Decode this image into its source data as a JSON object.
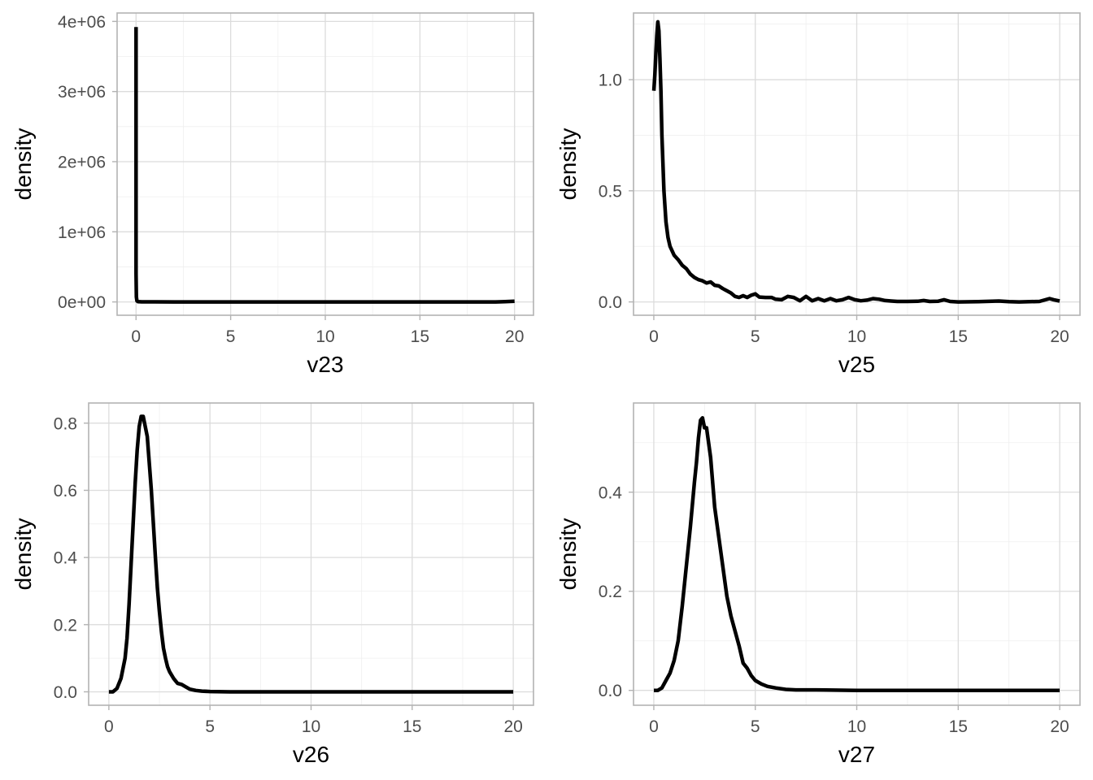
{
  "chart_data": [
    {
      "type": "line",
      "xlabel": "v23",
      "ylabel": "density",
      "xlim": [
        -1,
        21
      ],
      "ylim": [
        -190000,
        4120000
      ],
      "x_ticks": [
        0,
        5,
        10,
        15,
        20
      ],
      "x_tick_labels": [
        "0",
        "5",
        "10",
        "15",
        "20"
      ],
      "y_ticks": [
        0,
        1000000,
        2000000,
        3000000,
        4000000
      ],
      "y_tick_labels": [
        "0e+00",
        "1e+06",
        "2e+06",
        "3e+06",
        "4e+06"
      ],
      "grid": true,
      "series": [
        {
          "x": [
            0,
            0,
            0.02,
            0.05,
            0.1,
            0.3,
            1,
            2,
            5,
            10,
            15,
            19,
            19.5,
            20
          ],
          "y": [
            3920000,
            400000,
            70000,
            15000,
            5000,
            1500,
            800,
            0,
            0,
            0,
            0,
            0,
            5000,
            10000
          ]
        }
      ]
    },
    {
      "type": "line",
      "xlabel": "v25",
      "ylabel": "density",
      "xlim": [
        -1,
        21
      ],
      "ylim": [
        -0.06,
        1.3
      ],
      "x_ticks": [
        0,
        5,
        10,
        15,
        20
      ],
      "x_tick_labels": [
        "0",
        "5",
        "10",
        "15",
        "20"
      ],
      "y_ticks": [
        0,
        0.5,
        1.0
      ],
      "y_tick_labels": [
        "0.0",
        "0.5",
        "1.0"
      ],
      "grid": true,
      "series": [
        {
          "x": [
            0,
            0.05,
            0.1,
            0.15,
            0.2,
            0.25,
            0.3,
            0.35,
            0.4,
            0.5,
            0.6,
            0.7,
            0.8,
            1.0,
            1.2,
            1.4,
            1.6,
            1.8,
            2.0,
            2.2,
            2.4,
            2.6,
            2.8,
            3.0,
            3.2,
            3.4,
            3.6,
            3.8,
            4.0,
            4.2,
            4.4,
            4.6,
            4.8,
            5.0,
            5.2,
            5.5,
            5.8,
            6.0,
            6.3,
            6.6,
            6.9,
            7.2,
            7.5,
            7.8,
            8.1,
            8.4,
            8.7,
            9.0,
            9.3,
            9.6,
            9.9,
            10.2,
            10.5,
            10.8,
            11.1,
            11.4,
            11.7,
            12.0,
            12.5,
            13.0,
            13.3,
            13.6,
            14.0,
            14.3,
            14.6,
            15.0,
            16.0,
            17.0,
            17.5,
            18.0,
            19.0,
            19.5,
            19.7,
            20.0
          ],
          "y": [
            0.95,
            1.02,
            1.12,
            1.2,
            1.26,
            1.22,
            1.1,
            0.95,
            0.75,
            0.5,
            0.36,
            0.29,
            0.25,
            0.21,
            0.19,
            0.165,
            0.15,
            0.125,
            0.11,
            0.1,
            0.095,
            0.085,
            0.09,
            0.075,
            0.072,
            0.06,
            0.05,
            0.04,
            0.025,
            0.02,
            0.028,
            0.02,
            0.03,
            0.036,
            0.022,
            0.02,
            0.02,
            0.012,
            0.01,
            0.025,
            0.02,
            0.005,
            0.025,
            0.005,
            0.015,
            0.005,
            0.015,
            0.005,
            0.01,
            0.02,
            0.01,
            0.005,
            0.008,
            0.015,
            0.012,
            0.006,
            0.004,
            0.002,
            0.002,
            0.003,
            0.006,
            0.002,
            0.003,
            0.01,
            0.002,
            0.0,
            0.001,
            0.004,
            0.001,
            0.0,
            0.002,
            0.015,
            0.01,
            0.004
          ]
        }
      ]
    },
    {
      "type": "line",
      "xlabel": "v26",
      "ylabel": "density",
      "xlim": [
        -1,
        21
      ],
      "ylim": [
        -0.04,
        0.86
      ],
      "x_ticks": [
        0,
        5,
        10,
        15,
        20
      ],
      "x_tick_labels": [
        "0",
        "5",
        "10",
        "15",
        "20"
      ],
      "y_ticks": [
        0,
        0.2,
        0.4,
        0.6,
        0.8
      ],
      "y_tick_labels": [
        "0.0",
        "0.2",
        "0.4",
        "0.6",
        "0.8"
      ],
      "grid": true,
      "series": [
        {
          "x": [
            0,
            0.2,
            0.4,
            0.6,
            0.8,
            0.9,
            1.0,
            1.1,
            1.2,
            1.3,
            1.4,
            1.5,
            1.6,
            1.7,
            1.8,
            1.9,
            2.0,
            2.1,
            2.2,
            2.3,
            2.4,
            2.5,
            2.6,
            2.7,
            2.8,
            2.9,
            3.0,
            3.2,
            3.4,
            3.6,
            3.8,
            4.0,
            4.3,
            4.6,
            5.0,
            6.0,
            8.0,
            10.0,
            15.0,
            20.0
          ],
          "y": [
            0.0,
            0.0,
            0.01,
            0.04,
            0.1,
            0.16,
            0.26,
            0.38,
            0.5,
            0.62,
            0.72,
            0.79,
            0.82,
            0.82,
            0.79,
            0.76,
            0.68,
            0.6,
            0.5,
            0.4,
            0.31,
            0.24,
            0.18,
            0.13,
            0.1,
            0.075,
            0.06,
            0.04,
            0.025,
            0.022,
            0.015,
            0.008,
            0.004,
            0.002,
            0.001,
            0.0,
            0.0,
            0.0,
            0.0,
            0.0
          ]
        }
      ]
    },
    {
      "type": "line",
      "xlabel": "v27",
      "ylabel": "density",
      "xlim": [
        -1,
        21
      ],
      "ylim": [
        -0.03,
        0.58
      ],
      "x_ticks": [
        0,
        5,
        10,
        15,
        20
      ],
      "x_tick_labels": [
        "0",
        "5",
        "10",
        "15",
        "20"
      ],
      "y_ticks": [
        0,
        0.2,
        0.4
      ],
      "y_tick_labels": [
        "0.0",
        "0.2",
        "0.4"
      ],
      "grid": true,
      "series": [
        {
          "x": [
            0,
            0.2,
            0.4,
            0.6,
            0.8,
            1.0,
            1.2,
            1.4,
            1.6,
            1.8,
            2.0,
            2.1,
            2.2,
            2.3,
            2.4,
            2.5,
            2.6,
            2.7,
            2.8,
            2.9,
            3.0,
            3.2,
            3.4,
            3.6,
            3.8,
            4.0,
            4.2,
            4.4,
            4.6,
            4.8,
            5.0,
            5.3,
            5.6,
            6.0,
            6.5,
            7.0,
            8.0,
            10.0,
            15.0,
            20.0
          ],
          "y": [
            0.0,
            0.0,
            0.005,
            0.02,
            0.035,
            0.06,
            0.1,
            0.17,
            0.25,
            0.33,
            0.42,
            0.46,
            0.51,
            0.545,
            0.55,
            0.53,
            0.53,
            0.5,
            0.47,
            0.42,
            0.37,
            0.31,
            0.25,
            0.19,
            0.15,
            0.12,
            0.09,
            0.055,
            0.045,
            0.03,
            0.02,
            0.013,
            0.008,
            0.005,
            0.002,
            0.001,
            0.001,
            0.0,
            0.0,
            0.0
          ]
        }
      ]
    }
  ]
}
